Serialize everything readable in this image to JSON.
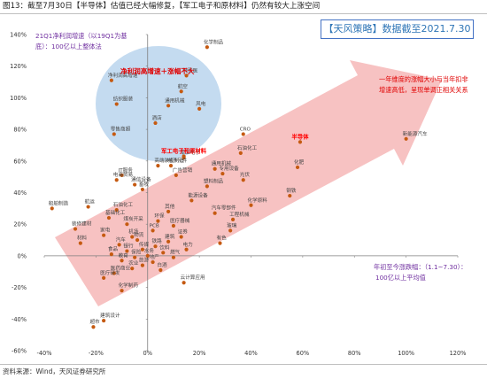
{
  "title": "图13：截至7月30日【半导体】估值已经大幅修复，【军工电子和原材料】仍然有较大上涨空间",
  "source": "资料来源：Wind，天风证券研究所",
  "chart_data": {
    "type": "scatter",
    "xlim": [
      -0.4,
      1.2
    ],
    "ylim": [
      -0.6,
      1.4
    ],
    "x_ticks": [
      "-40%",
      "-20%",
      "0%",
      "20%",
      "40%",
      "60%",
      "80%",
      "100%",
      "120%"
    ],
    "y_ticks": [
      "140%",
      "120%",
      "100%",
      "80%",
      "60%",
      "40%",
      "20%",
      "0%",
      "-20%",
      "-40%",
      "-60%"
    ],
    "point_color": "#c55a11",
    "highlight_color": "#ff0000",
    "points": [
      {
        "x": 0.23,
        "y": 1.32,
        "label": "化学制品"
      },
      {
        "x": 0.15,
        "y": 1.14,
        "label": "特殊医"
      },
      {
        "x": 0.13,
        "y": 1.04,
        "label": "航空"
      },
      {
        "x": -0.14,
        "y": 1.11,
        "label": "净利润高增速"
      },
      {
        "x": -0.12,
        "y": 0.96,
        "label": "纺织服装"
      },
      {
        "x": 0.08,
        "y": 0.95,
        "label": "通用机械"
      },
      {
        "x": 0.2,
        "y": 0.93,
        "label": "风电"
      },
      {
        "x": 0.03,
        "y": 0.84,
        "label": "酒店"
      },
      {
        "x": -0.13,
        "y": 0.77,
        "label": "零售商超"
      },
      {
        "x": 0.37,
        "y": 0.77,
        "label": "CRO"
      },
      {
        "x": 0.59,
        "y": 0.72,
        "label": "半导体",
        "highlight": true
      },
      {
        "x": 1.0,
        "y": 0.74,
        "label": "新能源汽车"
      },
      {
        "x": 0.36,
        "y": 0.65,
        "label": "石油化工"
      },
      {
        "x": 0.04,
        "y": 0.57,
        "label": "高端装备制造"
      },
      {
        "x": 0.14,
        "y": 0.62,
        "label": "军工电子"
      },
      {
        "x": 0.14,
        "y": 0.63,
        "label": "军工电子和原材料",
        "highlight": true
      },
      {
        "x": 0.09,
        "y": 0.57,
        "label": "电子元件"
      },
      {
        "x": 0.26,
        "y": 0.55,
        "label": "通用机械"
      },
      {
        "x": 0.58,
        "y": 0.56,
        "label": "化肥"
      },
      {
        "x": 0.29,
        "y": 0.52,
        "label": "专用设备"
      },
      {
        "x": 0.11,
        "y": 0.51,
        "label": "广告营销"
      },
      {
        "x": -0.1,
        "y": 0.51,
        "label": "IT服务"
      },
      {
        "x": -0.12,
        "y": 0.48,
        "label": "电商贸易"
      },
      {
        "x": 0.37,
        "y": 0.48,
        "label": "光伏"
      },
      {
        "x": -0.05,
        "y": 0.45,
        "label": "通信设备"
      },
      {
        "x": 0.23,
        "y": 0.44,
        "label": "塑料制品"
      },
      {
        "x": -0.02,
        "y": 0.42,
        "label": "畜牧"
      },
      {
        "x": 0.55,
        "y": 0.38,
        "label": "钢铁"
      },
      {
        "x": 0.17,
        "y": 0.35,
        "label": "能源设备"
      },
      {
        "x": -0.23,
        "y": 0.31,
        "label": "航运"
      },
      {
        "x": -0.37,
        "y": 0.3,
        "label": "船舶制造"
      },
      {
        "x": 0.4,
        "y": 0.32,
        "label": "化学原料"
      },
      {
        "x": -0.12,
        "y": 0.29,
        "label": "石油化工"
      },
      {
        "x": 0.08,
        "y": 0.28,
        "label": "其他"
      },
      {
        "x": 0.26,
        "y": 0.27,
        "label": "汽车零部件"
      },
      {
        "x": -0.15,
        "y": 0.24,
        "label": "基础化工"
      },
      {
        "x": 0.04,
        "y": 0.22,
        "label": "环保"
      },
      {
        "x": 0.33,
        "y": 0.23,
        "label": "工程机械"
      },
      {
        "x": -0.08,
        "y": 0.2,
        "label": "煤炭开采"
      },
      {
        "x": 0.1,
        "y": 0.19,
        "label": "医疗器械"
      },
      {
        "x": 0.02,
        "y": 0.16,
        "label": "PCB"
      },
      {
        "x": -0.28,
        "y": 0.17,
        "label": "装修建材"
      },
      {
        "x": 0.32,
        "y": 0.16,
        "label": "玻璃"
      },
      {
        "x": -0.17,
        "y": 0.13,
        "label": "家电"
      },
      {
        "x": -0.06,
        "y": 0.12,
        "label": "机场"
      },
      {
        "x": 0.13,
        "y": 0.12,
        "label": "证券"
      },
      {
        "x": -0.04,
        "y": 0.1,
        "label": "物流"
      },
      {
        "x": 0.08,
        "y": 0.09,
        "label": "建筑"
      },
      {
        "x": -0.26,
        "y": 0.08,
        "label": "材料"
      },
      {
        "x": 0.28,
        "y": 0.08,
        "label": "有色"
      },
      {
        "x": -0.11,
        "y": 0.07,
        "label": "汽车"
      },
      {
        "x": 0.03,
        "y": 0.06,
        "label": "铁路"
      },
      {
        "x": -0.02,
        "y": 0.04,
        "label": "传媒"
      },
      {
        "x": 0.15,
        "y": 0.04,
        "label": "电力"
      },
      {
        "x": -0.08,
        "y": 0.03,
        "label": "银行"
      },
      {
        "x": 0.06,
        "y": 0.02,
        "label": "饮料"
      },
      {
        "x": -0.14,
        "y": 0.01,
        "label": "食品"
      },
      {
        "x": 0.0,
        "y": 0.0,
        "label": "水务"
      },
      {
        "x": -0.05,
        "y": -0.01,
        "label": "保险"
      },
      {
        "x": 0.1,
        "y": -0.01,
        "label": "燃气"
      },
      {
        "x": -0.1,
        "y": -0.03,
        "label": "教育"
      },
      {
        "x": 0.02,
        "y": -0.04,
        "label": "地产"
      },
      {
        "x": -0.02,
        "y": -0.06,
        "label": "旅游"
      },
      {
        "x": -0.06,
        "y": -0.08,
        "label": "农业"
      },
      {
        "x": 0.05,
        "y": -0.09,
        "label": "白酒"
      },
      {
        "x": -0.13,
        "y": -0.11,
        "label": "医药商业"
      },
      {
        "x": -0.17,
        "y": -0.14,
        "label": "医疗研发"
      },
      {
        "x": 0.14,
        "y": -0.17,
        "label": "云计算应用"
      },
      {
        "x": -0.1,
        "y": -0.22,
        "label": "化学制药"
      },
      {
        "x": -0.17,
        "y": -0.41,
        "label": "建筑设计"
      },
      {
        "x": -0.21,
        "y": -0.45,
        "label": "超市"
      }
    ]
  },
  "annotations": {
    "tianfeng_box": "【天风策略】数据截至2021.7.30",
    "q1_line1": "21Q1净利润增速（以19Q1为基",
    "q1_line2": "底）：100亿以上整体法",
    "ytd_line1": "年初至今涨跌幅：（1.1~7.30）：",
    "ytd_line2": "100亿以上平均值",
    "arrow_line1": "一年维度的涨幅大小与当年扣非",
    "arrow_line2": "增速高低，呈现单调正相关关系",
    "circle_label": "净利润高增速＋涨幅不大"
  },
  "colors": {
    "axis": "#7f7f7f",
    "arrow_fill": "#f4a8a8",
    "circle_fill": "#9dc3e6",
    "purple": "#7030a0",
    "blue": "#2e75b6",
    "red": "#ff0000"
  }
}
